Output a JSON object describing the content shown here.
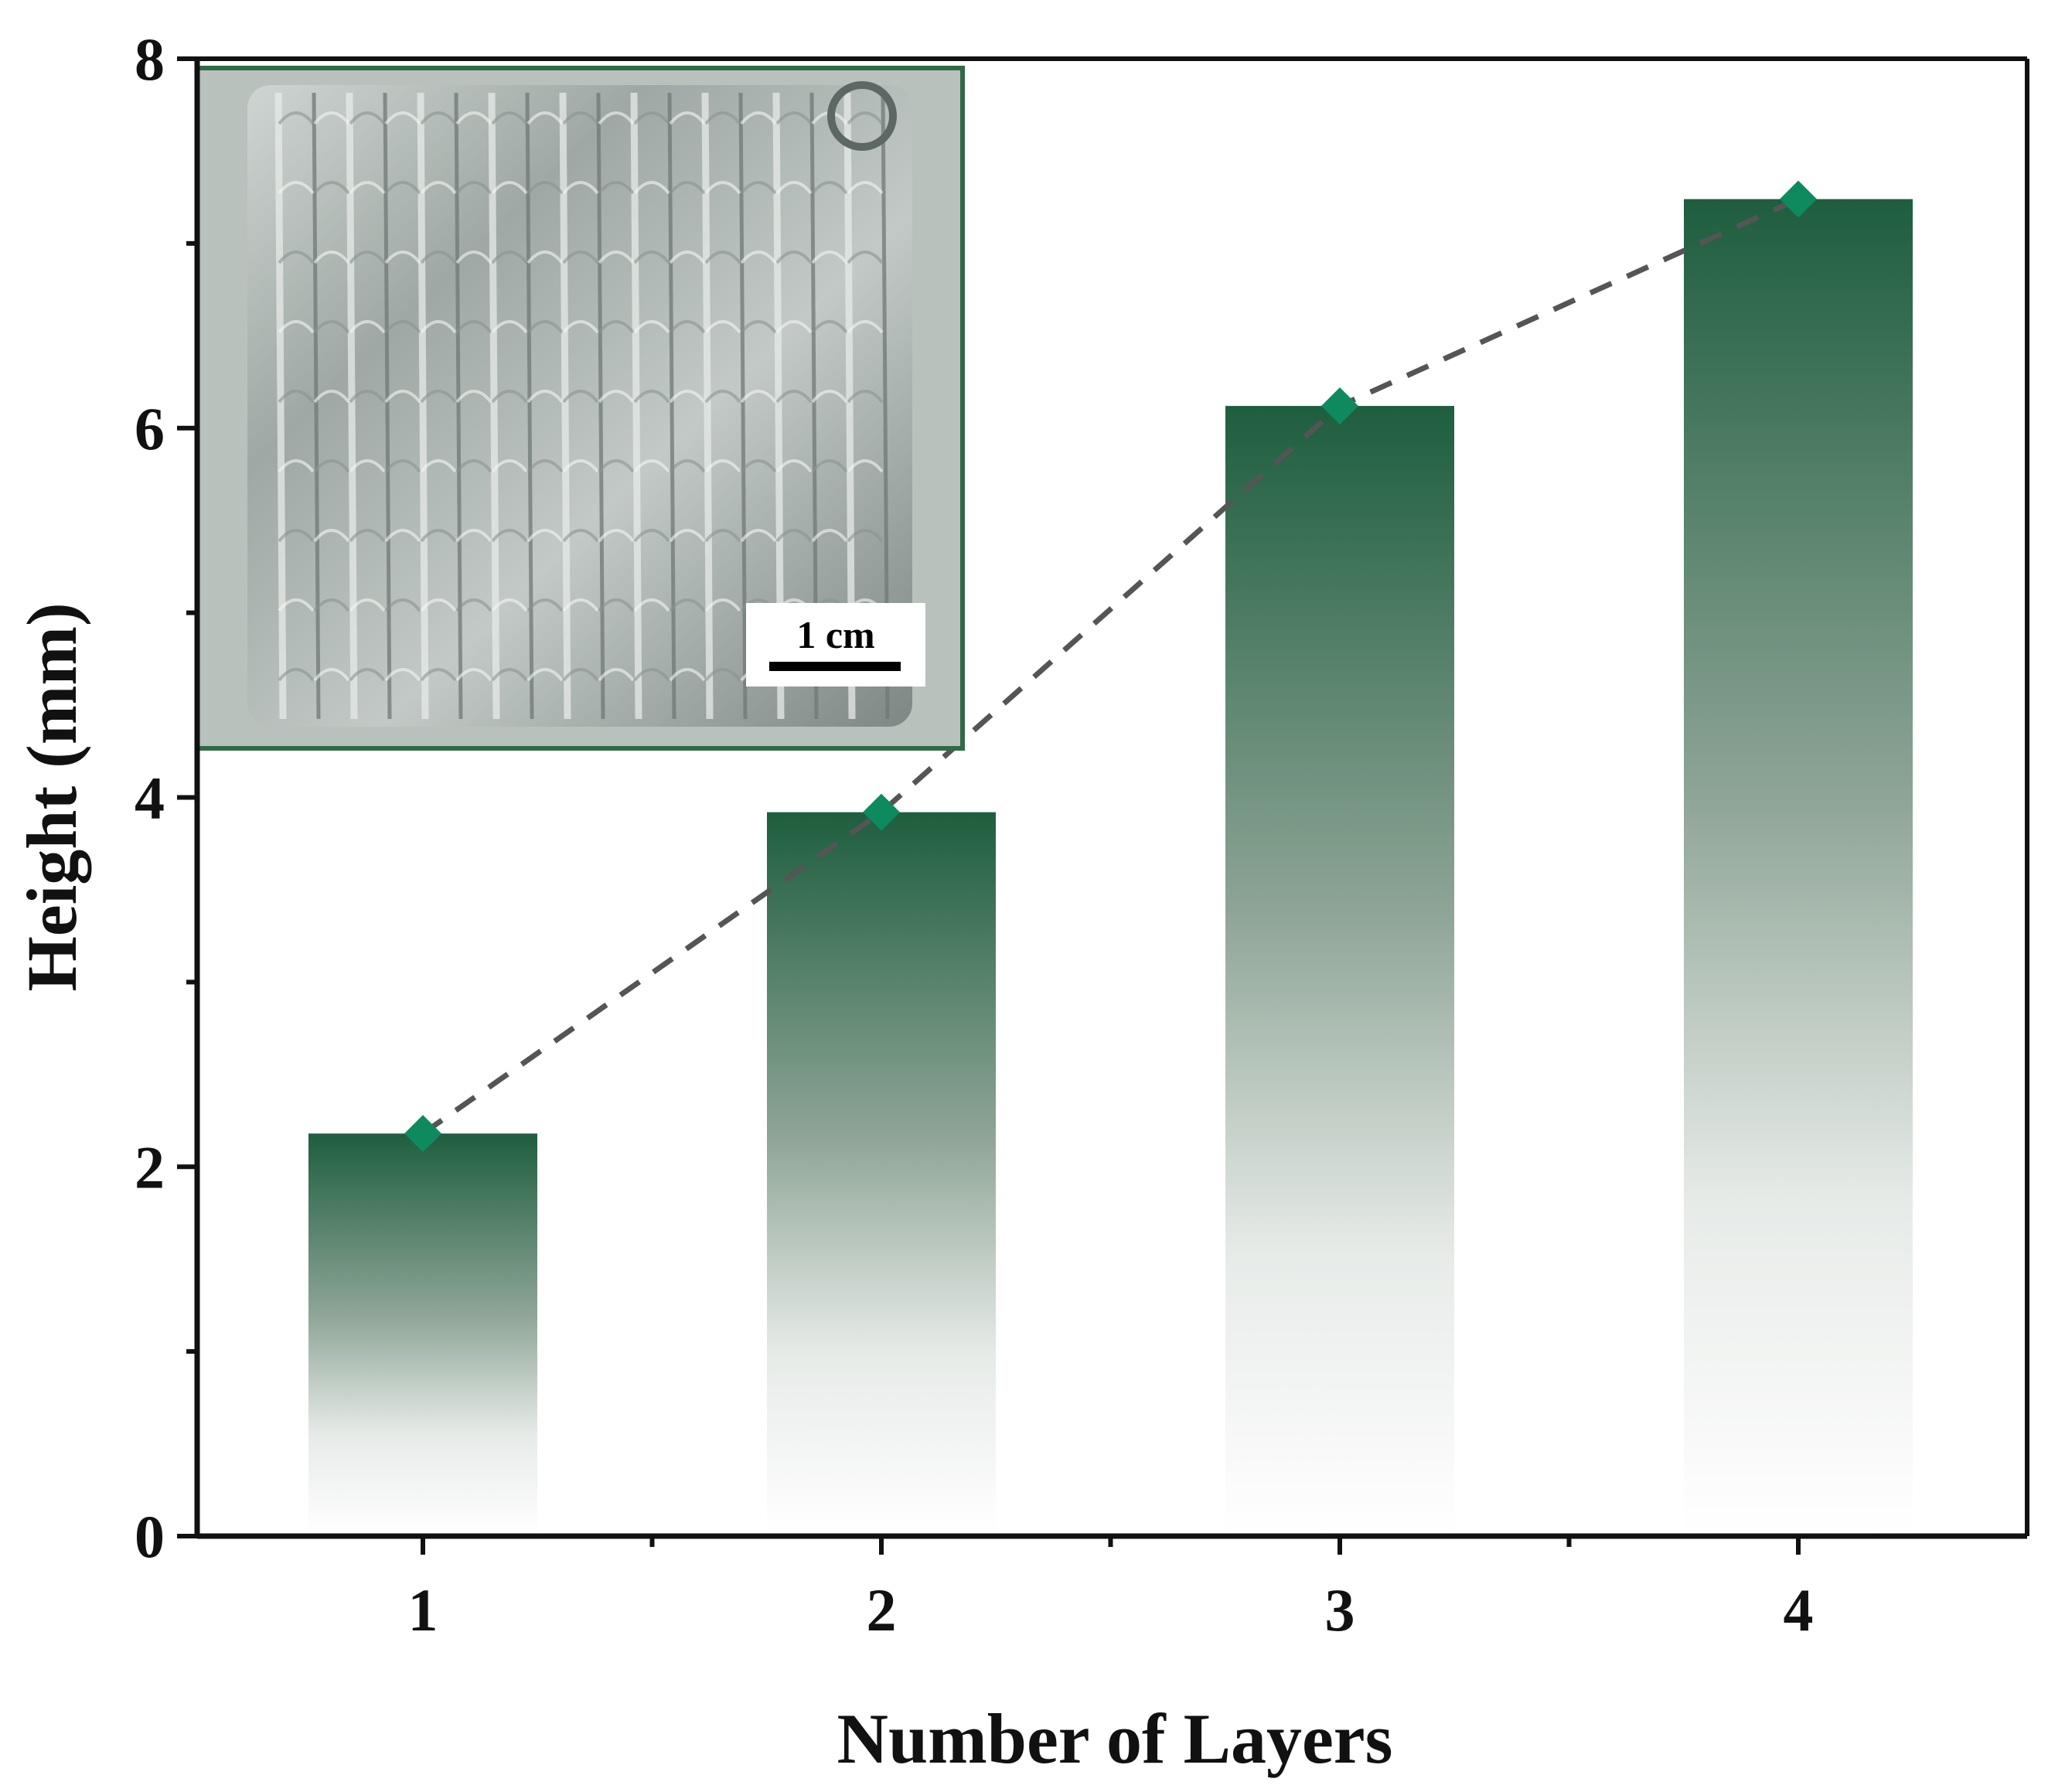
{
  "chart_data": {
    "type": "bar",
    "categories": [
      "1",
      "2",
      "3",
      "4"
    ],
    "values": [
      2.18,
      3.92,
      6.12,
      7.24
    ],
    "line_overlay": {
      "style": "dashed",
      "marker": "diamond",
      "values": [
        2.18,
        3.92,
        6.12,
        7.24
      ]
    },
    "xlabel": "Number of Layers",
    "ylabel": "Height (mm)",
    "ylim": [
      0,
      8
    ],
    "yticks": [
      0,
      2,
      4,
      6,
      8
    ],
    "xticks": [
      "1",
      "2",
      "3",
      "4"
    ],
    "grid": false,
    "legend": "none",
    "colors": {
      "bar_top": "#1e5e3e",
      "bar_bottom": "#ffffff",
      "marker": "#0e8a5f",
      "line": "#555555",
      "inset_border": "#2e6b45"
    }
  },
  "inset": {
    "scale_bar_label": "1 cm"
  }
}
